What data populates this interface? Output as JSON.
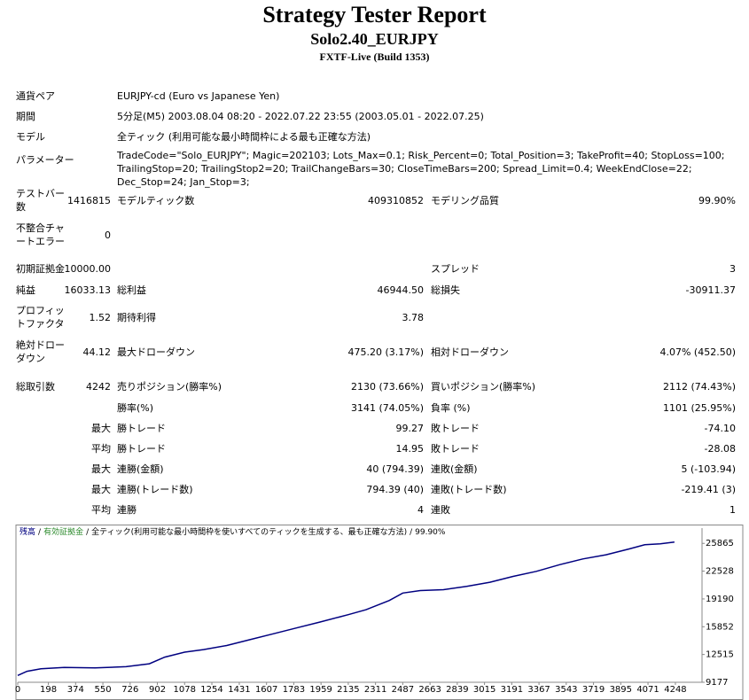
{
  "header": {
    "title": "Strategy Tester Report",
    "subtitle": "Solo2.40_EURJPY",
    "build": "FXTF-Live (Build 1353)"
  },
  "info": [
    {
      "label": "通貨ペア",
      "value": "EURJPY-cd (Euro vs Japanese Yen)"
    },
    {
      "label": "期間",
      "value": "5分足(M5) 2003.08.04 08:20 - 2022.07.22 23:55 (2003.05.01 - 2022.07.25)"
    },
    {
      "label": "モデル",
      "value": "全ティック (利用可能な最小時間枠による最も正確な方法)"
    },
    {
      "label": "パラメーター",
      "value": "TradeCode=\"Solo_EURJPY\"; Magic=202103; Lots_Max=0.1; Risk_Percent=0; Total_Position=3; TakeProfit=40; StopLoss=100; TrailingStop=20; TrailingStop2=20; TrailChangeBars=30; CloseTimeBars=200; Spread_Limit=0.4; WeekEndClose=22; Dec_Stop=24; Jan_Stop=3;"
    }
  ],
  "stats": [
    [
      "テストバー数",
      "1416815",
      "モデルティック数",
      "409310852",
      "モデリング品質",
      "99.90%"
    ],
    [
      "不整合チャートエラー",
      "0",
      null,
      null,
      null,
      null
    ],
    [
      "初期証拠金",
      "10000.00",
      null,
      null,
      "スプレッド",
      "3"
    ],
    [
      "純益",
      "16033.13",
      "総利益",
      "46944.50",
      "総損失",
      "-30911.37"
    ],
    [
      "プロフィットファクタ",
      "1.52",
      "期待利得",
      "3.78",
      null,
      null
    ],
    [
      "絶対ドローダウン",
      "44.12",
      "最大ドローダウン",
      "475.20 (3.17%)",
      "相対ドローダウン",
      "4.07% (452.50)"
    ],
    [
      "総取引数",
      "4242",
      "売りポジション(勝率%)",
      "2130 (73.66%)",
      "買いポジション(勝率%)",
      "2112 (74.43%)"
    ],
    [
      null,
      null,
      "勝率(%)",
      "3141 (74.05%)",
      "負率 (%)",
      "1101 (25.95%)"
    ],
    [
      null,
      "最大",
      "勝トレード",
      "99.27",
      "敗トレード",
      "-74.10"
    ],
    [
      null,
      "平均",
      "勝トレード",
      "14.95",
      "敗トレード",
      "-28.08"
    ],
    [
      null,
      "最大",
      "連勝(金額)",
      "40 (794.39)",
      "連敗(金額)",
      "5 (-103.94)"
    ],
    [
      null,
      "最大",
      "連勝(トレード数)",
      "794.39 (40)",
      "連敗(トレード数)",
      "-219.41 (3)"
    ],
    [
      null,
      "平均",
      "連勝",
      "4",
      "連敗",
      "1"
    ]
  ],
  "chart_data": {
    "type": "line",
    "separator": "/",
    "equity_label": "有効証拠金",
    "equity_color": "#2e8b2e",
    "model_note": "全ティック(利用可能な最小時間枠を使いすべてのティックを生成する、最も正確な方法)",
    "quality": "99.90%",
    "x": [
      0,
      60,
      150,
      300,
      500,
      700,
      850,
      950,
      1078,
      1200,
      1350,
      1500,
      1650,
      1800,
      1950,
      2135,
      2250,
      2400,
      2487,
      2600,
      2750,
      2900,
      3050,
      3200,
      3350,
      3500,
      3650,
      3800,
      3950,
      4050,
      4150,
      4242
    ],
    "series": [
      {
        "name": "残高",
        "color": "#000080",
        "values": [
          10000,
          10500,
          10800,
          10950,
          10900,
          11050,
          11400,
          12200,
          12800,
          13100,
          13600,
          14300,
          15000,
          15700,
          16400,
          17300,
          17900,
          19000,
          19900,
          20200,
          20300,
          20700,
          21200,
          21900,
          22500,
          23300,
          24000,
          24500,
          25200,
          25700,
          25800,
          26033
        ]
      }
    ],
    "xlim": [
      0,
      4420
    ],
    "ylim": [
      9177,
      27700
    ],
    "xticks": [
      0,
      198,
      374,
      550,
      726,
      902,
      1078,
      1254,
      1431,
      1607,
      1783,
      1959,
      2135,
      2311,
      2487,
      2663,
      2839,
      3015,
      3191,
      3367,
      3543,
      3719,
      3895,
      4071,
      4248
    ],
    "yticks": [
      9177,
      12515,
      15852,
      19190,
      22528,
      25865
    ],
    "grid": false
  }
}
